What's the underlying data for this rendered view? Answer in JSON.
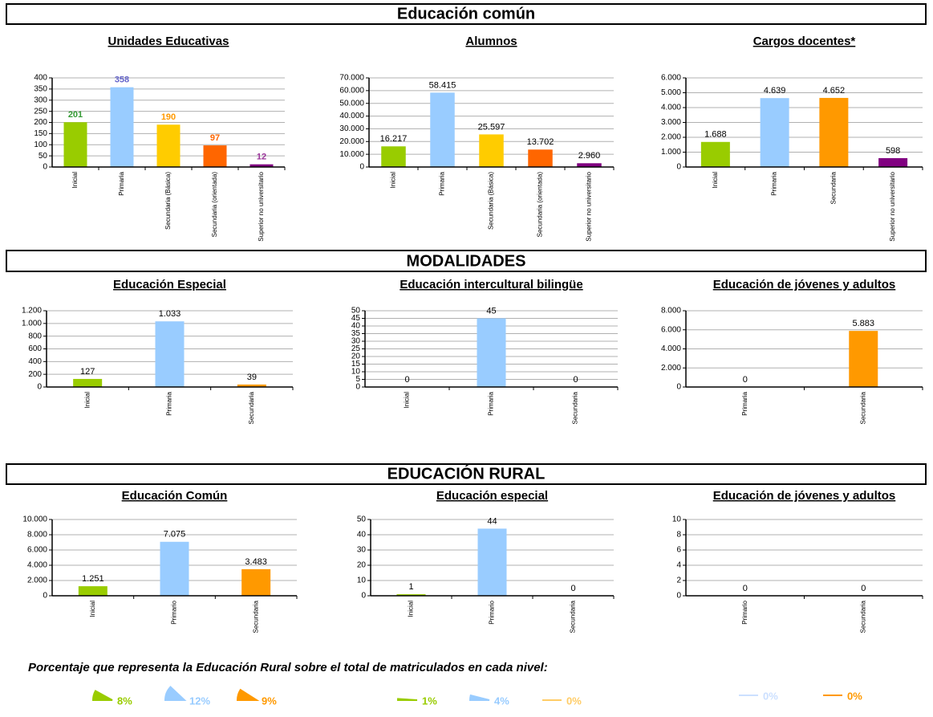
{
  "sections": [
    "Educación común",
    "MODALIDADES",
    "EDUCACIÓN RURAL"
  ],
  "footer": {
    "note": "Porcentaje que representa la Educación Rural sobre el total de matriculados en cada nivel:"
  },
  "chart_data": [
    {
      "type": "bar",
      "title": "Unidades Educativas",
      "categories": [
        "Inicial",
        "Primaria",
        "Secundaria (Básica)",
        "Secundaria (orientada)",
        "Superior no universitario"
      ],
      "values": [
        201,
        358,
        190,
        97,
        12
      ],
      "colors": [
        "#99cc00",
        "#99ccff",
        "#ffcc00",
        "#ff6600",
        "#800080"
      ],
      "value_label_colors": [
        "#339933",
        "#6666cc",
        "#ff9900",
        "#ff6600",
        "#993399"
      ],
      "ylim": [
        0,
        400
      ],
      "yticks": [
        0,
        50,
        100,
        150,
        200,
        250,
        300,
        350,
        400
      ],
      "grid": true
    },
    {
      "type": "bar",
      "title": "Alumnos",
      "categories": [
        "Inicial",
        "Primaria",
        "Secundaria (Básica)",
        "Secundaria (orientada)",
        "Superior no universitario"
      ],
      "values": [
        16217,
        58415,
        25597,
        13702,
        2960
      ],
      "value_labels": [
        "16.217",
        "58.415",
        "25.597",
        "13.702",
        "2.960"
      ],
      "colors": [
        "#99cc00",
        "#99ccff",
        "#ffcc00",
        "#ff6600",
        "#800080"
      ],
      "ylim": [
        0,
        70000
      ],
      "yticks": [
        0,
        {
          "value": 10000,
          "label": "10.000"
        },
        {
          "value": 20000,
          "label": "20.000"
        },
        {
          "value": 30000,
          "label": "30.000"
        },
        {
          "value": 40000,
          "label": "40.000"
        },
        {
          "value": 50000,
          "label": "50.000"
        },
        {
          "value": 60000,
          "label": "60.000"
        },
        {
          "value": 70000,
          "label": "70.000"
        }
      ],
      "grid": true
    },
    {
      "type": "bar",
      "title": "Cargos docentes*",
      "categories": [
        "Inicial",
        "Primaria",
        "Secundaria",
        "Superior no universitario"
      ],
      "values": [
        1688,
        4639,
        4652,
        598
      ],
      "value_labels": [
        "1.688",
        "4.639",
        "4.652",
        "598"
      ],
      "colors": [
        "#99cc00",
        "#99ccff",
        "#ff9900",
        "#800080"
      ],
      "ylim": [
        0,
        6000
      ],
      "yticks": [
        0,
        {
          "value": 1000,
          "label": "1.000"
        },
        {
          "value": 2000,
          "label": "2.000"
        },
        {
          "value": 3000,
          "label": "3.000"
        },
        {
          "value": 4000,
          "label": "4.000"
        },
        {
          "value": 5000,
          "label": "5.000"
        },
        {
          "value": 6000,
          "label": "6.000"
        }
      ],
      "grid": true
    },
    {
      "type": "bar",
      "title": "Educación Especial",
      "categories": [
        "Inicial",
        "Primaria",
        "Secundaria"
      ],
      "values": [
        127,
        1033,
        39
      ],
      "value_labels": [
        "127",
        "1.033",
        "39"
      ],
      "colors": [
        "#99cc00",
        "#99ccff",
        "#ff9900"
      ],
      "ylim": [
        0,
        1200
      ],
      "yticks": [
        0,
        200,
        400,
        600,
        800,
        {
          "value": 1000,
          "label": "1.000"
        },
        {
          "value": 1200,
          "label": "1.200"
        }
      ],
      "grid": true
    },
    {
      "type": "bar",
      "title": "Educación intercultural bilingüe",
      "categories": [
        "Inicial",
        "Primaria",
        "Secundaria"
      ],
      "values": [
        0,
        45,
        0
      ],
      "colors": [
        "#99cc00",
        "#99ccff",
        "#ff9900"
      ],
      "ylim": [
        0,
        50
      ],
      "yticks": [
        0,
        5,
        10,
        15,
        20,
        25,
        30,
        35,
        40,
        45,
        50
      ],
      "grid": true
    },
    {
      "type": "bar",
      "title": "Educación de jóvenes y adultos",
      "categories": [
        "Primaria",
        "Secundaria"
      ],
      "values": [
        0,
        5883
      ],
      "value_labels": [
        "0",
        "5.883"
      ],
      "colors": [
        "#99ccff",
        "#ff9900"
      ],
      "ylim": [
        0,
        8000
      ],
      "yticks": [
        0,
        {
          "value": 2000,
          "label": "2.000"
        },
        {
          "value": 4000,
          "label": "4.000"
        },
        {
          "value": 6000,
          "label": "6.000"
        },
        {
          "value": 8000,
          "label": "8.000"
        }
      ],
      "grid": true
    },
    {
      "type": "bar",
      "title": "Educación Común",
      "categories": [
        "Inicial",
        "Primario",
        "Secundaria"
      ],
      "values": [
        1251,
        7075,
        3483
      ],
      "value_labels": [
        "1.251",
        "7.075",
        "3.483"
      ],
      "colors": [
        "#99cc00",
        "#99ccff",
        "#ff9900"
      ],
      "ylim": [
        0,
        10000
      ],
      "yticks": [
        0,
        {
          "value": 2000,
          "label": "2.000"
        },
        {
          "value": 4000,
          "label": "4.000"
        },
        {
          "value": 6000,
          "label": "6.000"
        },
        {
          "value": 8000,
          "label": "8.000"
        },
        {
          "value": 10000,
          "label": "10.000"
        }
      ],
      "grid": true
    },
    {
      "type": "bar",
      "title": "Educación especial",
      "categories": [
        "Inicial",
        "Primario",
        "Secundaria"
      ],
      "values": [
        1,
        44,
        0
      ],
      "colors": [
        "#99cc00",
        "#99ccff",
        "#ff9900"
      ],
      "ylim": [
        0,
        50
      ],
      "yticks": [
        0,
        10,
        20,
        30,
        40,
        50
      ],
      "grid": true
    },
    {
      "type": "bar",
      "title": "Educación de jóvenes y adultos",
      "categories": [
        "Primario",
        "Secundaria"
      ],
      "values": [
        0,
        0
      ],
      "colors": [
        "#99ccff",
        "#ff9900"
      ],
      "ylim": [
        0,
        10
      ],
      "yticks": [
        0,
        2,
        4,
        6,
        8,
        10
      ],
      "grid": true
    },
    {
      "type": "share",
      "values": [
        8,
        12,
        9
      ],
      "value_labels": [
        "8%",
        "12%",
        "9%"
      ],
      "colors": [
        "#99cc00",
        "#99ccff",
        "#ff9900"
      ]
    },
    {
      "type": "share",
      "values": [
        1,
        4,
        0
      ],
      "value_labels": [
        "1%",
        "4%",
        "0%"
      ],
      "colors": [
        "#99cc00",
        "#99ccff",
        "#ffcc66"
      ]
    },
    {
      "type": "share",
      "values": [
        0,
        0
      ],
      "value_labels": [
        "0%",
        "0%"
      ],
      "colors": [
        "#cce0ff",
        "#ff9900"
      ]
    }
  ]
}
